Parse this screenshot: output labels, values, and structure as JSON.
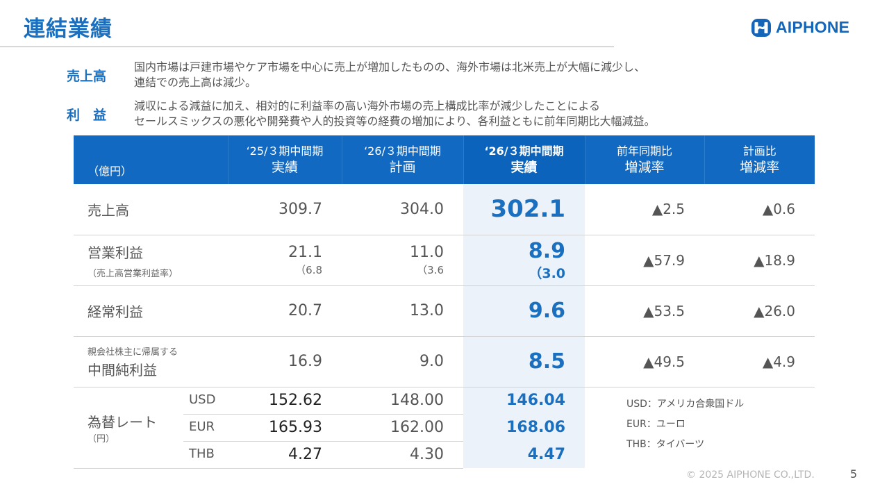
{
  "title": "連結業績",
  "logo": {
    "text": "AIPHONE"
  },
  "summary": [
    {
      "label": "売上高",
      "lines": [
        "国内市場は戸建市場やケア市場を中心に売上が増加したものの、海外市場は北米売上が大幅に減少し、",
        "連結での売上高は減少。"
      ]
    },
    {
      "label": "利　益",
      "lines": [
        "減収による減益に加え、相対的に利益率の高い海外市場の売上構成比率が減少したことによる",
        "セールスミックスの悪化や開発費や人的投資等の経費の増加により、各利益ともに前年同期比大幅減益。"
      ]
    }
  ],
  "table": {
    "unit": "（億円）",
    "headers": [
      {
        "line1": "‘25/３期中間期",
        "line2": "実績"
      },
      {
        "line1": "‘26/３期中間期",
        "line2": "計画"
      },
      {
        "line1": "‘26/３期中間期",
        "line2": "実績"
      },
      {
        "line1": "前年同期比",
        "line2": "増減率"
      },
      {
        "line1": "計画比",
        "line2": "増減率"
      }
    ],
    "rows": [
      {
        "label": "売上高",
        "prev": "309.7",
        "plan": "304.0",
        "actual": "302.1",
        "yoy": "▲2.5",
        "vs_plan": "▲0.6"
      },
      {
        "label": "営業利益",
        "sublabel": "（売上高営業利益率）",
        "prev": "21.1",
        "prev_margin": "（6.8",
        "plan": "11.0",
        "plan_margin": "（3.6",
        "actual": "8.9",
        "actual_margin": "（3.0",
        "yoy": "▲57.9",
        "vs_plan": "▲18.9"
      },
      {
        "label": "経常利益",
        "prev": "20.7",
        "plan": "13.0",
        "actual": "9.6",
        "yoy": "▲53.5",
        "vs_plan": "▲26.0"
      },
      {
        "prelabel": "親会社株主に帰属する",
        "label": "中間純利益",
        "prev": "16.9",
        "plan": "9.0",
        "actual": "8.5",
        "yoy": "▲49.5",
        "vs_plan": "▲4.9"
      }
    ],
    "percent_sign": "%",
    "close_paren": "）",
    "fx": {
      "label": "為替レート",
      "sublabel": "（円）",
      "rows": [
        {
          "ccy": "USD",
          "prev": "152.62",
          "plan": "148.00",
          "actual": "146.04"
        },
        {
          "ccy": "EUR",
          "prev": "165.93",
          "plan": "162.00",
          "actual": "168.06"
        },
        {
          "ccy": "THB",
          "prev": "4.27",
          "plan": "4.30",
          "actual": "4.47"
        }
      ],
      "legend": [
        "USD：アメリカ合衆国ドル",
        "EUR：ユーロ",
        "THB：タイバーツ"
      ]
    }
  },
  "footer": "© 2025 AIPHONE CO.,LTD.",
  "page_number": "5",
  "colors": {
    "brand_blue": "#1a6fbf",
    "header_bg": "#1169c2",
    "highlight_bg": "#ecf2fa"
  }
}
